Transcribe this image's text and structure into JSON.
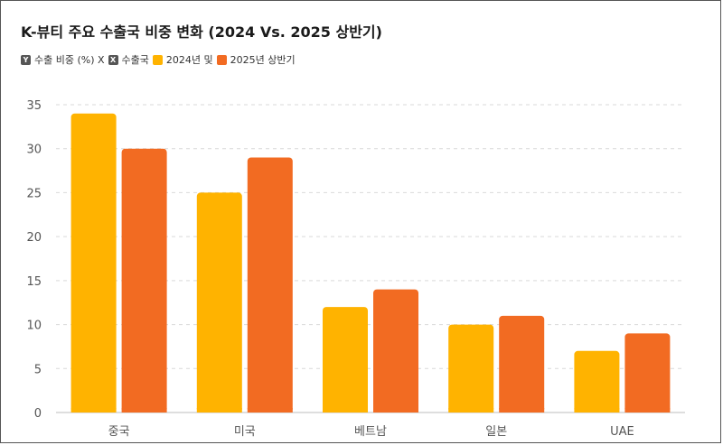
{
  "chart_data": {
    "type": "bar",
    "title": "K-뷰티 주요 수출국 비중 변화 (2024 Vs. 2025 상반기)",
    "legend": {
      "y_key": "Y",
      "y_label": "수출 비중 (%) X",
      "x_key": "X",
      "x_label": "수출국",
      "series_1_label": "2024년 및",
      "series_2_label": "2025년 상반기"
    },
    "categories": [
      "중국",
      "미국",
      "베트남",
      "일본",
      "UAE"
    ],
    "series": [
      {
        "values": [
          34,
          25,
          12,
          10,
          7
        ],
        "color": "#FFB300"
      },
      {
        "values": [
          30,
          29,
          14,
          11,
          9
        ],
        "color": "#F26B22"
      }
    ],
    "y_ticks": [
      "0",
      "5",
      "10",
      "15",
      "20",
      "25",
      "30",
      "35"
    ],
    "ylim": [
      0,
      35
    ],
    "grid": true
  }
}
